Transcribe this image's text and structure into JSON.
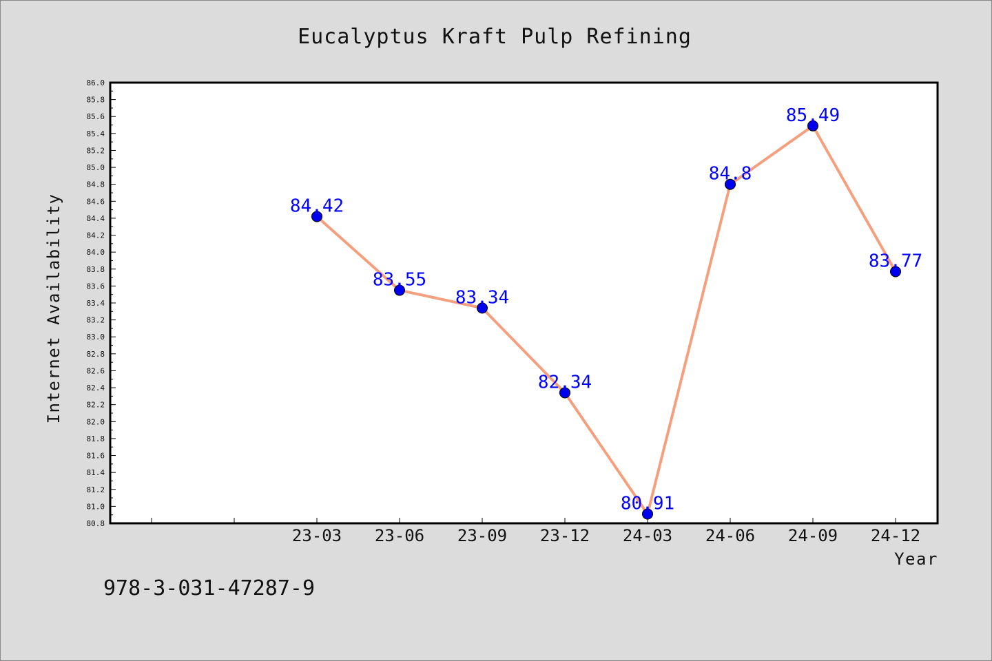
{
  "chart_data": {
    "type": "line",
    "title": "Eucalyptus Kraft Pulp Refining",
    "xlabel": "Year",
    "ylabel": "Internet Availability",
    "categories": [
      "23-03",
      "23-06",
      "23-09",
      "23-12",
      "24-03",
      "24-06",
      "24-09",
      "24-12"
    ],
    "series": [
      {
        "values": [
          84.42,
          83.55,
          83.34,
          82.34,
          80.91,
          84.8,
          85.49,
          83.77
        ]
      }
    ],
    "data_labels": [
      "84.42",
      "83.55",
      "83.34",
      "82.34",
      "80.91",
      "84.8",
      "85.49",
      "83.77"
    ],
    "ylim": [
      80.8,
      86.0
    ],
    "ytick_step": 0.2,
    "grid": false,
    "legend": false,
    "colors": {
      "line": "#f4a07e",
      "marker": "#0000ee",
      "label": "#0000ff",
      "plot_bg": "#ffffff",
      "page_bg": "#dcdcdc"
    }
  },
  "footer": {
    "code": "978-3-031-47287-9"
  }
}
